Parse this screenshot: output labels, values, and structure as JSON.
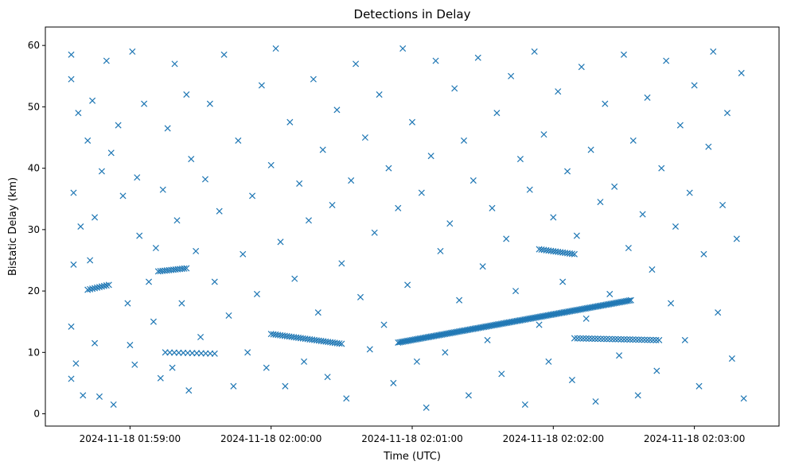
{
  "chart_data": {
    "type": "scatter",
    "title": "Detections in Delay",
    "xlabel": "Time (UTC)",
    "ylabel": "Bistatic Delay (km)",
    "x_ticks": [
      "2024-11-18 01:59:00",
      "2024-11-18 02:00:00",
      "2024-11-18 02:01:00",
      "2024-11-18 02:02:00",
      "2024-11-18 02:03:00"
    ],
    "y_ticks": [
      0,
      10,
      20,
      30,
      40,
      50,
      60
    ],
    "xlim": [
      "2024-11-18 01:58:24",
      "2024-11-18 02:03:36"
    ],
    "ylim": [
      -2,
      63
    ],
    "marker": "x",
    "color": "#1f77b4",
    "grid": false,
    "series": [
      {
        "tracks": [
          {
            "t": [
              "2024-11-18 01:58:42",
              "2024-11-18 01:58:51"
            ],
            "delay": [
              20.2,
              21.0
            ],
            "n": 10
          },
          {
            "t": [
              "2024-11-18 01:59:12",
              "2024-11-18 01:59:24"
            ],
            "delay": [
              23.2,
              23.7
            ],
            "n": 14
          },
          {
            "t": [
              "2024-11-18 01:59:15",
              "2024-11-18 01:59:36"
            ],
            "delay": [
              10.0,
              9.8
            ],
            "n": 12
          },
          {
            "t": [
              "2024-11-18 02:00:00",
              "2024-11-18 02:00:30"
            ],
            "delay": [
              13.0,
              11.4
            ],
            "n": 32
          },
          {
            "t": [
              "2024-11-18 02:00:54",
              "2024-11-18 02:02:33"
            ],
            "delay": [
              11.6,
              18.5
            ],
            "n": 150
          },
          {
            "t": [
              "2024-11-18 02:01:54",
              "2024-11-18 02:02:09"
            ],
            "delay": [
              26.8,
              26.0
            ],
            "n": 16
          },
          {
            "t": [
              "2024-11-18 02:02:09",
              "2024-11-18 02:02:45"
            ],
            "delay": [
              12.3,
              12.0
            ],
            "n": 30
          }
        ],
        "scattered": [
          [
            "2024-11-18 01:58:35",
            58.5
          ],
          [
            "2024-11-18 01:58:35",
            54.5
          ],
          [
            "2024-11-18 01:58:38",
            49
          ],
          [
            "2024-11-18 01:58:36",
            36
          ],
          [
            "2024-11-18 01:58:39",
            30.5
          ],
          [
            "2024-11-18 01:58:36",
            24.3
          ],
          [
            "2024-11-18 01:58:35",
            14.2
          ],
          [
            "2024-11-18 01:58:37",
            8.2
          ],
          [
            "2024-11-18 01:58:35",
            5.7
          ],
          [
            "2024-11-18 01:58:40",
            3
          ],
          [
            "2024-11-18 01:58:42",
            44.5
          ],
          [
            "2024-11-18 01:58:44",
            51
          ],
          [
            "2024-11-18 01:58:45",
            32
          ],
          [
            "2024-11-18 01:58:43",
            25
          ],
          [
            "2024-11-18 01:58:45",
            11.5
          ],
          [
            "2024-11-18 01:58:47",
            2.8
          ],
          [
            "2024-11-18 01:58:48",
            39.5
          ],
          [
            "2024-11-18 01:58:50",
            57.5
          ],
          [
            "2024-11-18 01:58:52",
            42.5
          ],
          [
            "2024-11-18 01:58:53",
            1.5
          ],
          [
            "2024-11-18 01:58:55",
            47
          ],
          [
            "2024-11-18 01:58:57",
            35.5
          ],
          [
            "2024-11-18 01:58:59",
            18
          ],
          [
            "2024-11-18 01:59:00",
            11.2
          ],
          [
            "2024-11-18 01:59:01",
            59
          ],
          [
            "2024-11-18 01:59:02",
            8
          ],
          [
            "2024-11-18 01:59:03",
            38.5
          ],
          [
            "2024-11-18 01:59:04",
            29
          ],
          [
            "2024-11-18 01:59:06",
            50.5
          ],
          [
            "2024-11-18 01:59:08",
            21.5
          ],
          [
            "2024-11-18 01:59:10",
            15
          ],
          [
            "2024-11-18 01:59:11",
            27
          ],
          [
            "2024-11-18 01:59:13",
            5.8
          ],
          [
            "2024-11-18 01:59:14",
            36.5
          ],
          [
            "2024-11-18 01:59:16",
            46.5
          ],
          [
            "2024-11-18 01:59:18",
            7.5
          ],
          [
            "2024-11-18 01:59:19",
            57
          ],
          [
            "2024-11-18 01:59:20",
            31.5
          ],
          [
            "2024-11-18 01:59:22",
            18
          ],
          [
            "2024-11-18 01:59:24",
            52
          ],
          [
            "2024-11-18 01:59:25",
            3.8
          ],
          [
            "2024-11-18 01:59:26",
            41.5
          ],
          [
            "2024-11-18 01:59:28",
            26.5
          ],
          [
            "2024-11-18 01:59:30",
            12.5
          ],
          [
            "2024-11-18 01:59:32",
            38.2
          ],
          [
            "2024-11-18 01:59:34",
            50.5
          ],
          [
            "2024-11-18 01:59:36",
            21.5
          ],
          [
            "2024-11-18 01:59:38",
            33
          ],
          [
            "2024-11-18 01:59:40",
            58.5
          ],
          [
            "2024-11-18 01:59:42",
            16
          ],
          [
            "2024-11-18 01:59:44",
            4.5
          ],
          [
            "2024-11-18 01:59:46",
            44.5
          ],
          [
            "2024-11-18 01:59:48",
            26
          ],
          [
            "2024-11-18 01:59:50",
            10
          ],
          [
            "2024-11-18 01:59:52",
            35.5
          ],
          [
            "2024-11-18 01:59:54",
            19.5
          ],
          [
            "2024-11-18 01:59:56",
            53.5
          ],
          [
            "2024-11-18 01:59:58",
            7.5
          ],
          [
            "2024-11-18 02:00:00",
            40.5
          ],
          [
            "2024-11-18 02:00:02",
            59.5
          ],
          [
            "2024-11-18 02:00:04",
            28
          ],
          [
            "2024-11-18 02:00:06",
            4.5
          ],
          [
            "2024-11-18 02:00:08",
            47.5
          ],
          [
            "2024-11-18 02:00:10",
            22
          ],
          [
            "2024-11-18 02:00:12",
            37.5
          ],
          [
            "2024-11-18 02:00:14",
            8.5
          ],
          [
            "2024-11-18 02:00:16",
            31.5
          ],
          [
            "2024-11-18 02:00:18",
            54.5
          ],
          [
            "2024-11-18 02:00:20",
            16.5
          ],
          [
            "2024-11-18 02:00:22",
            43
          ],
          [
            "2024-11-18 02:00:24",
            6
          ],
          [
            "2024-11-18 02:00:26",
            34
          ],
          [
            "2024-11-18 02:00:28",
            49.5
          ],
          [
            "2024-11-18 02:00:30",
            24.5
          ],
          [
            "2024-11-18 02:00:32",
            2.5
          ],
          [
            "2024-11-18 02:00:34",
            38
          ],
          [
            "2024-11-18 02:00:36",
            57
          ],
          [
            "2024-11-18 02:00:38",
            19
          ],
          [
            "2024-11-18 02:00:40",
            45
          ],
          [
            "2024-11-18 02:00:42",
            10.5
          ],
          [
            "2024-11-18 02:00:44",
            29.5
          ],
          [
            "2024-11-18 02:00:46",
            52
          ],
          [
            "2024-11-18 02:00:48",
            14.5
          ],
          [
            "2024-11-18 02:00:50",
            40
          ],
          [
            "2024-11-18 02:00:52",
            5
          ],
          [
            "2024-11-18 02:00:54",
            33.5
          ],
          [
            "2024-11-18 02:00:56",
            59.5
          ],
          [
            "2024-11-18 02:00:58",
            21
          ],
          [
            "2024-11-18 02:01:00",
            47.5
          ],
          [
            "2024-11-18 02:01:02",
            8.5
          ],
          [
            "2024-11-18 02:01:04",
            36
          ],
          [
            "2024-11-18 02:01:06",
            1
          ],
          [
            "2024-11-18 02:01:08",
            42
          ],
          [
            "2024-11-18 02:01:10",
            57.5
          ],
          [
            "2024-11-18 02:01:12",
            26.5
          ],
          [
            "2024-11-18 02:01:14",
            10
          ],
          [
            "2024-11-18 02:01:16",
            31
          ],
          [
            "2024-11-18 02:01:18",
            53
          ],
          [
            "2024-11-18 02:01:20",
            18.5
          ],
          [
            "2024-11-18 02:01:22",
            44.5
          ],
          [
            "2024-11-18 02:01:24",
            3
          ],
          [
            "2024-11-18 02:01:26",
            38
          ],
          [
            "2024-11-18 02:01:28",
            58
          ],
          [
            "2024-11-18 02:01:30",
            24
          ],
          [
            "2024-11-18 02:01:32",
            12
          ],
          [
            "2024-11-18 02:01:34",
            33.5
          ],
          [
            "2024-11-18 02:01:36",
            49
          ],
          [
            "2024-11-18 02:01:38",
            6.5
          ],
          [
            "2024-11-18 02:01:40",
            28.5
          ],
          [
            "2024-11-18 02:01:42",
            55
          ],
          [
            "2024-11-18 02:01:44",
            20
          ],
          [
            "2024-11-18 02:01:46",
            41.5
          ],
          [
            "2024-11-18 02:01:48",
            1.5
          ],
          [
            "2024-11-18 02:01:50",
            36.5
          ],
          [
            "2024-11-18 02:01:52",
            59
          ],
          [
            "2024-11-18 02:01:54",
            14.5
          ],
          [
            "2024-11-18 02:01:56",
            45.5
          ],
          [
            "2024-11-18 02:01:58",
            8.5
          ],
          [
            "2024-11-18 02:02:00",
            32
          ],
          [
            "2024-11-18 02:02:02",
            52.5
          ],
          [
            "2024-11-18 02:02:04",
            21.5
          ],
          [
            "2024-11-18 02:02:06",
            39.5
          ],
          [
            "2024-11-18 02:02:08",
            5.5
          ],
          [
            "2024-11-18 02:02:10",
            29
          ],
          [
            "2024-11-18 02:02:12",
            56.5
          ],
          [
            "2024-11-18 02:02:14",
            15.5
          ],
          [
            "2024-11-18 02:02:16",
            43
          ],
          [
            "2024-11-18 02:02:18",
            2
          ],
          [
            "2024-11-18 02:02:20",
            34.5
          ],
          [
            "2024-11-18 02:02:22",
            50.5
          ],
          [
            "2024-11-18 02:02:24",
            19.5
          ],
          [
            "2024-11-18 02:02:26",
            37
          ],
          [
            "2024-11-18 02:02:28",
            9.5
          ],
          [
            "2024-11-18 02:02:30",
            58.5
          ],
          [
            "2024-11-18 02:02:32",
            27
          ],
          [
            "2024-11-18 02:02:34",
            44.5
          ],
          [
            "2024-11-18 02:02:36",
            3
          ],
          [
            "2024-11-18 02:02:38",
            32.5
          ],
          [
            "2024-11-18 02:02:40",
            51.5
          ],
          [
            "2024-11-18 02:02:42",
            23.5
          ],
          [
            "2024-11-18 02:02:44",
            7
          ],
          [
            "2024-11-18 02:02:46",
            40
          ],
          [
            "2024-11-18 02:02:48",
            57.5
          ],
          [
            "2024-11-18 02:02:50",
            18
          ],
          [
            "2024-11-18 02:02:52",
            30.5
          ],
          [
            "2024-11-18 02:02:54",
            47
          ],
          [
            "2024-11-18 02:02:56",
            12
          ],
          [
            "2024-11-18 02:02:58",
            36
          ],
          [
            "2024-11-18 02:03:00",
            53.5
          ],
          [
            "2024-11-18 02:03:02",
            4.5
          ],
          [
            "2024-11-18 02:03:04",
            26
          ],
          [
            "2024-11-18 02:03:06",
            43.5
          ],
          [
            "2024-11-18 02:03:08",
            59
          ],
          [
            "2024-11-18 02:03:10",
            16.5
          ],
          [
            "2024-11-18 02:03:12",
            34
          ],
          [
            "2024-11-18 02:03:14",
            49
          ],
          [
            "2024-11-18 02:03:16",
            9
          ],
          [
            "2024-11-18 02:03:18",
            28.5
          ],
          [
            "2024-11-18 02:03:20",
            55.5
          ],
          [
            "2024-11-18 02:03:21",
            2.5
          ]
        ]
      }
    ]
  }
}
